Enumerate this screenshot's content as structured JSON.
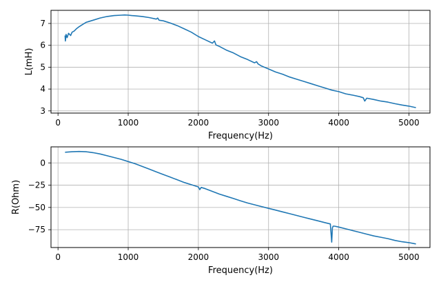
{
  "chart_data": [
    {
      "type": "line",
      "xlabel": "Frequency(Hz)",
      "ylabel": "L(mH)",
      "xlim": [
        -100,
        5300
      ],
      "ylim": [
        2.9,
        7.6
      ],
      "xticks": [
        0,
        1000,
        2000,
        3000,
        4000,
        5000
      ],
      "yticks": [
        3,
        4,
        5,
        6,
        7
      ],
      "ytick_labels": [
        "3",
        "4",
        "5",
        "6",
        "7"
      ],
      "grid": true,
      "series": [
        {
          "name": "L",
          "color": "#1f77b4",
          "x": [
            100,
            105,
            115,
            130,
            150,
            180,
            200,
            230,
            260,
            300,
            350,
            400,
            500,
            600,
            700,
            800,
            900,
            950,
            1000,
            1050,
            1100,
            1200,
            1300,
            1400,
            1420,
            1440,
            1500,
            1600,
            1700,
            1800,
            1900,
            2000,
            2100,
            2200,
            2230,
            2250,
            2300,
            2400,
            2500,
            2600,
            2700,
            2800,
            2830,
            2850,
            2900,
            3000,
            3100,
            3200,
            3300,
            3400,
            3500,
            3600,
            3700,
            3800,
            3900,
            4000,
            4100,
            4200,
            4300,
            4350,
            4370,
            4400,
            4500,
            4600,
            4700,
            4800,
            4900,
            5000,
            5100
          ],
          "y": [
            6.45,
            6.2,
            6.5,
            6.35,
            6.55,
            6.45,
            6.6,
            6.65,
            6.75,
            6.85,
            6.95,
            7.05,
            7.15,
            7.25,
            7.32,
            7.36,
            7.38,
            7.39,
            7.38,
            7.36,
            7.35,
            7.32,
            7.27,
            7.2,
            7.25,
            7.15,
            7.12,
            7.02,
            6.9,
            6.75,
            6.6,
            6.4,
            6.25,
            6.1,
            6.2,
            6.02,
            5.95,
            5.78,
            5.65,
            5.48,
            5.35,
            5.2,
            5.25,
            5.15,
            5.05,
            4.92,
            4.78,
            4.68,
            4.55,
            4.45,
            4.35,
            4.25,
            4.15,
            4.05,
            3.95,
            3.88,
            3.78,
            3.72,
            3.65,
            3.6,
            3.45,
            3.58,
            3.52,
            3.45,
            3.4,
            3.33,
            3.27,
            3.22,
            3.15
          ]
        }
      ]
    },
    {
      "type": "line",
      "xlabel": "Frequency(Hz)",
      "ylabel": "R(Ohm)",
      "xlim": [
        -100,
        5300
      ],
      "ylim": [
        -95,
        18
      ],
      "xticks": [
        0,
        1000,
        2000,
        3000,
        4000,
        5000
      ],
      "yticks": [
        0,
        -25,
        -50,
        -75
      ],
      "ytick_labels": [
        "0",
        "−25",
        "−50",
        "−75"
      ],
      "grid": true,
      "series": [
        {
          "name": "R",
          "color": "#1f77b4",
          "x": [
            100,
            200,
            300,
            400,
            500,
            600,
            700,
            800,
            900,
            1000,
            1100,
            1200,
            1300,
            1400,
            1500,
            1600,
            1700,
            1800,
            1900,
            2000,
            2020,
            2040,
            2100,
            2200,
            2300,
            2400,
            2500,
            2600,
            2700,
            2800,
            2900,
            3000,
            3100,
            3200,
            3300,
            3400,
            3500,
            3600,
            3700,
            3800,
            3880,
            3900,
            3910,
            3920,
            3940,
            4000,
            4100,
            4200,
            4300,
            4400,
            4500,
            4600,
            4700,
            4800,
            4900,
            5000,
            5100
          ],
          "y": [
            12,
            12.5,
            12.8,
            12.5,
            11.5,
            10,
            8,
            6,
            4,
            1.5,
            -1,
            -4,
            -7,
            -10,
            -13,
            -16,
            -19,
            -22,
            -24.5,
            -27,
            -30,
            -27.5,
            -29,
            -32,
            -35,
            -37.5,
            -40,
            -42.5,
            -45,
            -47,
            -49,
            -51,
            -53,
            -55,
            -57,
            -59,
            -61,
            -63,
            -65,
            -67,
            -68.5,
            -89,
            -73,
            -71,
            -71,
            -72,
            -74,
            -76,
            -78,
            -80,
            -82,
            -83.5,
            -85,
            -87,
            -88.5,
            -89.5,
            -91
          ]
        }
      ]
    }
  ]
}
